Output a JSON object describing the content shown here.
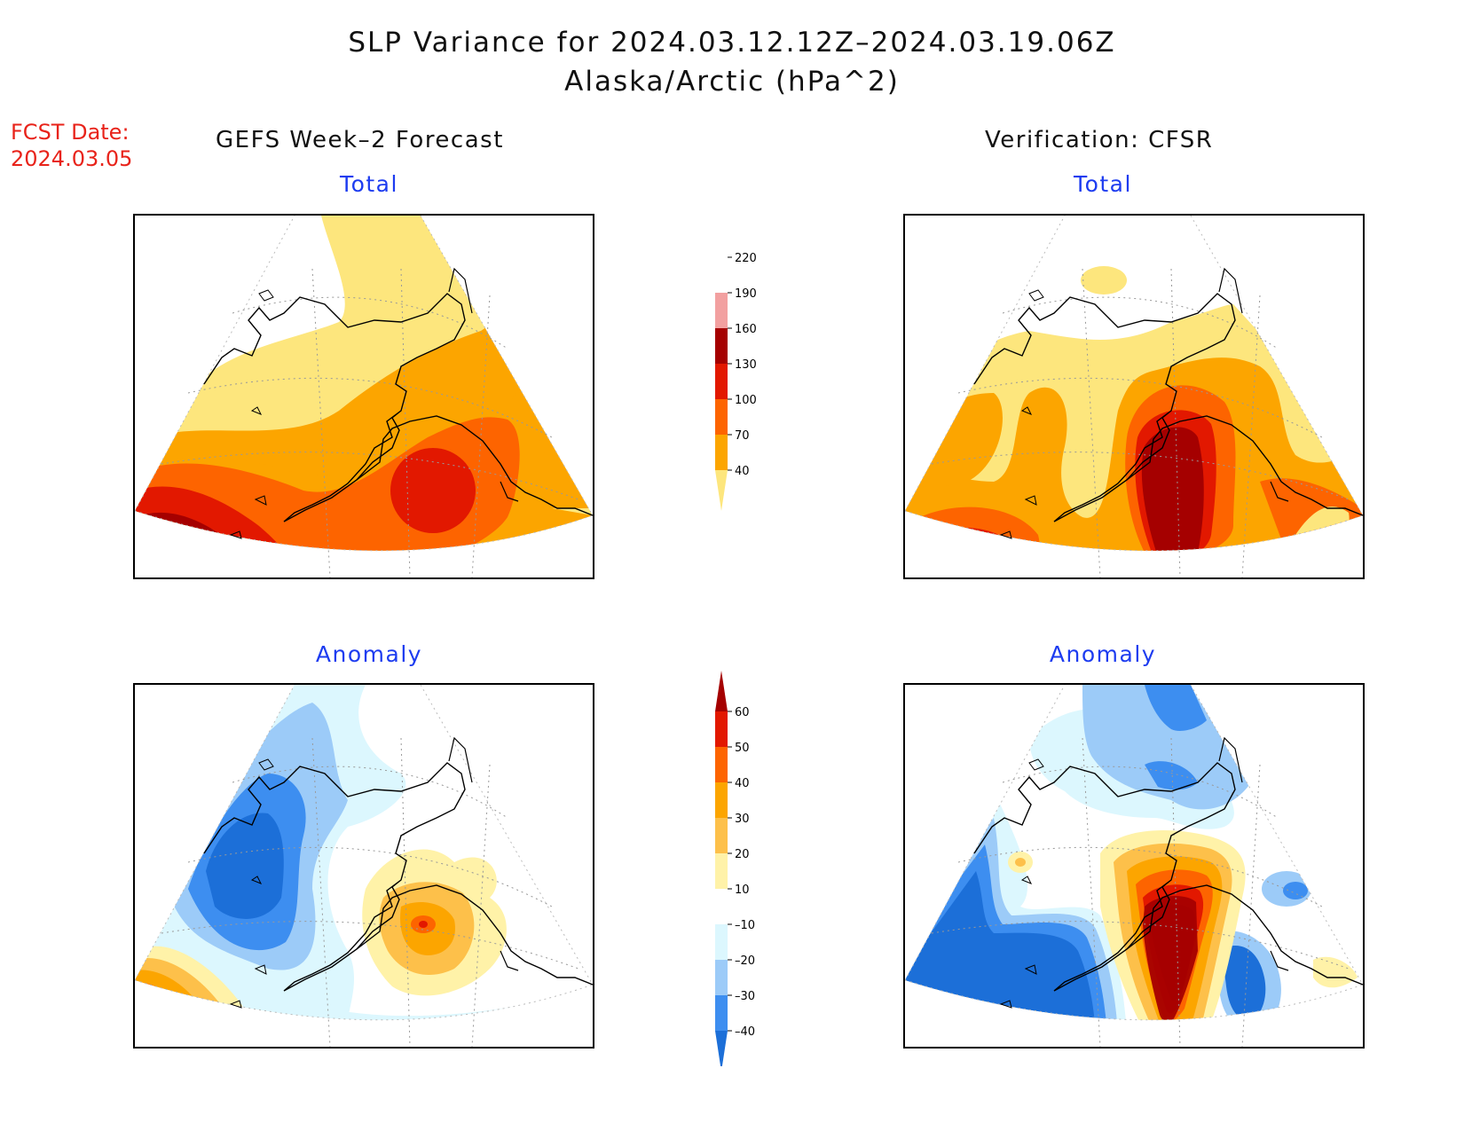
{
  "title": {
    "line1": "SLP Variance for 2024.03.12.12Z–2024.03.19.06Z",
    "line2": "Alaska/Arctic (hPa^2)"
  },
  "fcst": {
    "line1": "FCST Date:",
    "line2": "2024.03.05"
  },
  "columns": {
    "left": "GEFS Week–2 Forecast",
    "right": "Verification: CFSR"
  },
  "panels": {
    "total_left": "Total",
    "total_right": "Total",
    "anomaly_left": "Anomaly",
    "anomaly_right": "Anomaly"
  },
  "colorbars": {
    "total": {
      "ticks": [
        "40",
        "70",
        "100",
        "130",
        "160",
        "190",
        "220"
      ],
      "colors": [
        "#fde67d",
        "#fca500",
        "#fd6400",
        "#e21800",
        "#a50000",
        "#f2a0a0",
        "#ffffff"
      ]
    },
    "anomaly": {
      "ticks": [
        "–40",
        "–30",
        "–20",
        "–10",
        "10",
        "20",
        "30",
        "40",
        "50",
        "60"
      ],
      "colors": [
        "#1c6fd8",
        "#3d8ef0",
        "#9ccbf8",
        "#dcf7fe",
        "#ffffff",
        "#fff2a8",
        "#fdc04a",
        "#fca500",
        "#fd6400",
        "#e21800",
        "#a50000"
      ]
    }
  }
}
